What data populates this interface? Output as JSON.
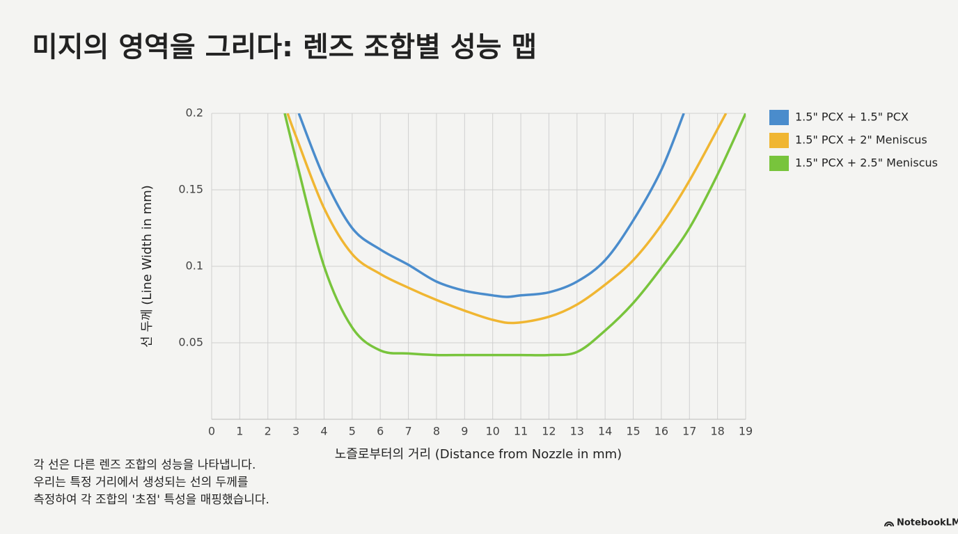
{
  "chart_data": {
    "type": "line",
    "title": "미지의 영역을 그리다: 렌즈 조합별 성능 맵",
    "x_label": "노즐로부터의 거리 (Distance from Nozzle in mm)",
    "y_label": "선 두께 (Line Width in mm)",
    "xlim": [
      0,
      19
    ],
    "xticks": [
      0,
      1,
      2,
      3,
      4,
      5,
      6,
      7,
      8,
      9,
      10,
      11,
      12,
      13,
      14,
      15,
      16,
      17,
      18,
      19
    ],
    "ylim": [
      0,
      0.2
    ],
    "yticks": [
      0.05,
      0.1,
      0.15,
      0.2
    ],
    "grid": true,
    "legend": "right",
    "series": [
      {
        "name": "1.5\" PCX + 1.5\" PCX",
        "color": "#4a8ccc",
        "x": [
          3.1,
          4,
          5,
          6,
          7,
          8,
          9,
          10,
          10.5,
          11,
          12,
          13,
          14,
          15,
          16,
          16.8
        ],
        "values": [
          0.2,
          0.158,
          0.125,
          0.111,
          0.101,
          0.09,
          0.084,
          0.081,
          0.08,
          0.081,
          0.083,
          0.09,
          0.104,
          0.13,
          0.163,
          0.2
        ]
      },
      {
        "name": "1.5\" PCX + 2\" Meniscus",
        "color": "#f0b632",
        "x": [
          2.7,
          3,
          4,
          5,
          6,
          7,
          8,
          9,
          10,
          10.8,
          12,
          13,
          14,
          15,
          16,
          17,
          18.3
        ],
        "values": [
          0.2,
          0.185,
          0.138,
          0.108,
          0.095,
          0.086,
          0.078,
          0.071,
          0.065,
          0.063,
          0.067,
          0.075,
          0.088,
          0.104,
          0.127,
          0.156,
          0.2
        ]
      },
      {
        "name": "1.5\" PCX + 2.5\" Meniscus",
        "color": "#78c43c",
        "x": [
          2.6,
          3,
          4,
          5,
          6,
          7,
          8,
          9,
          10,
          11,
          12,
          13,
          14,
          15,
          16,
          17,
          18,
          19
        ],
        "values": [
          0.2,
          0.17,
          0.1,
          0.06,
          0.045,
          0.043,
          0.042,
          0.042,
          0.042,
          0.042,
          0.042,
          0.044,
          0.058,
          0.076,
          0.099,
          0.125,
          0.16,
          0.2
        ]
      }
    ]
  },
  "notes": [
    "각 선은 다른 렌즈 조합의 성능을 나타냅니다.",
    "우리는 특정 거리에서 생성되는 선의 두께를",
    "측정하여 각 조합의 '초점' 특성을 매핑했습니다."
  ],
  "brand": "NotebookLM"
}
